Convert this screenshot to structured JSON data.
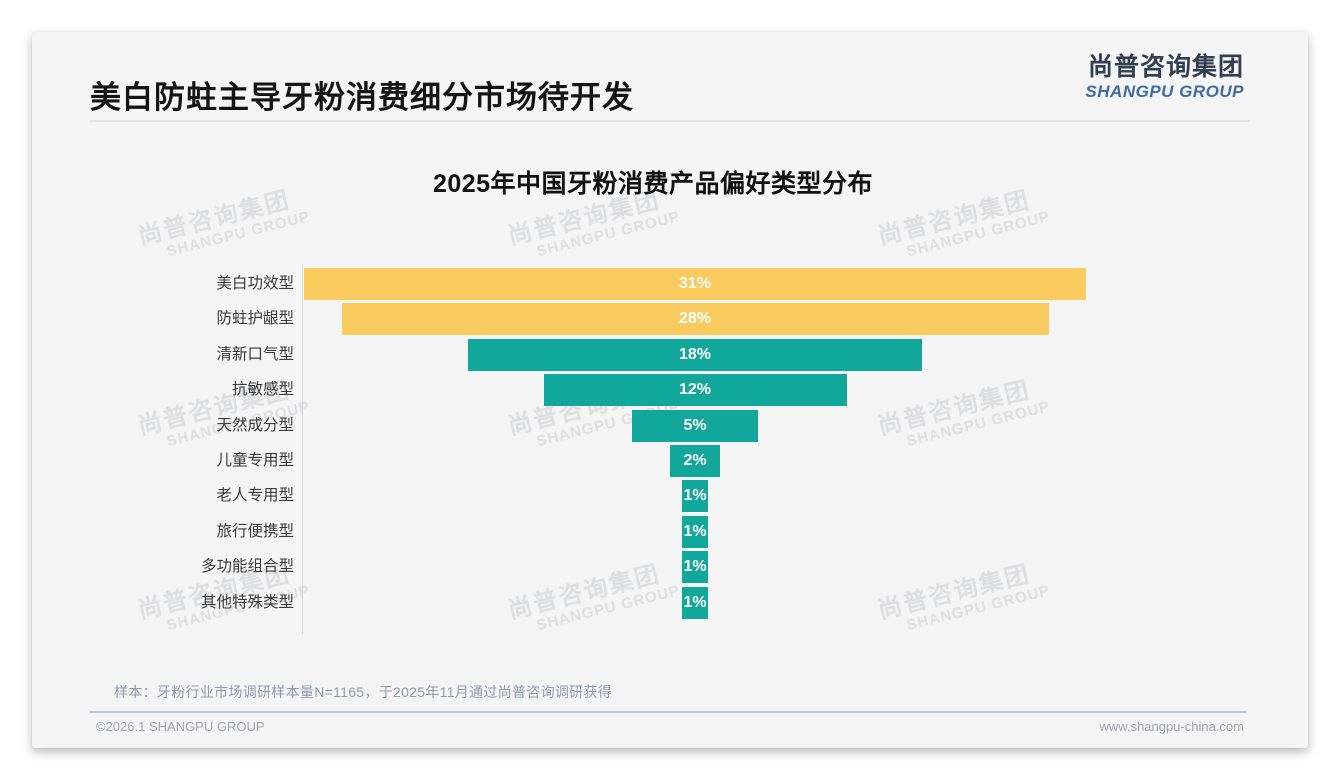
{
  "header": {
    "title": "美白防蛀主导牙粉消费细分市场待开发",
    "logo_cn": "尚普咨询集团",
    "logo_en": "SHANGPU GROUP"
  },
  "watermark": {
    "cn": "尚普咨询集团",
    "en": "SHANGPU GROUP"
  },
  "chart_data": {
    "type": "bar",
    "orientation": "horizontal",
    "layout_hint": "funnel-style bars centered on a common vertical midline, category labels left of axis, value labels centered in bars, no gridlines, no legend",
    "title": "2025年中国牙粉消费产品偏好类型分布",
    "categories": [
      "美白功效型",
      "防蛀护龈型",
      "清新口气型",
      "抗敏感型",
      "天然成分型",
      "儿童专用型",
      "老人专用型",
      "旅行便携型",
      "多功能组合型",
      "其他特殊类型"
    ],
    "values": [
      31,
      28,
      18,
      12,
      5,
      2,
      1,
      1,
      1,
      1
    ],
    "value_labels": [
      "31%",
      "28%",
      "18%",
      "12%",
      "5%",
      "2%",
      "1%",
      "1%",
      "1%",
      "1%"
    ],
    "point_colors": [
      "#FACB5F",
      "#FACB5F",
      "#12A79B",
      "#12A79B",
      "#12A79B",
      "#12A79B",
      "#12A79B",
      "#12A79B",
      "#12A79B",
      "#12A79B"
    ],
    "unit": "%",
    "xlim": [
      0,
      31
    ],
    "grid": false,
    "legend": false
  },
  "colors": {
    "accent_yellow": "#FACB5F",
    "accent_teal": "#12A79B",
    "logo_navy": "#333E52",
    "logo_blue": "#3F6AA6",
    "footer_divider_blue": "#B9C8D7",
    "slide_background": "#F5F5F6"
  },
  "footer": {
    "sample_note": "样本：牙粉行业市场调研样本量N=1165，于2025年11月通过尚普咨询调研获得",
    "copyright": "©2026.1 SHANGPU GROUP",
    "website": "www.shangpu-china.com"
  }
}
